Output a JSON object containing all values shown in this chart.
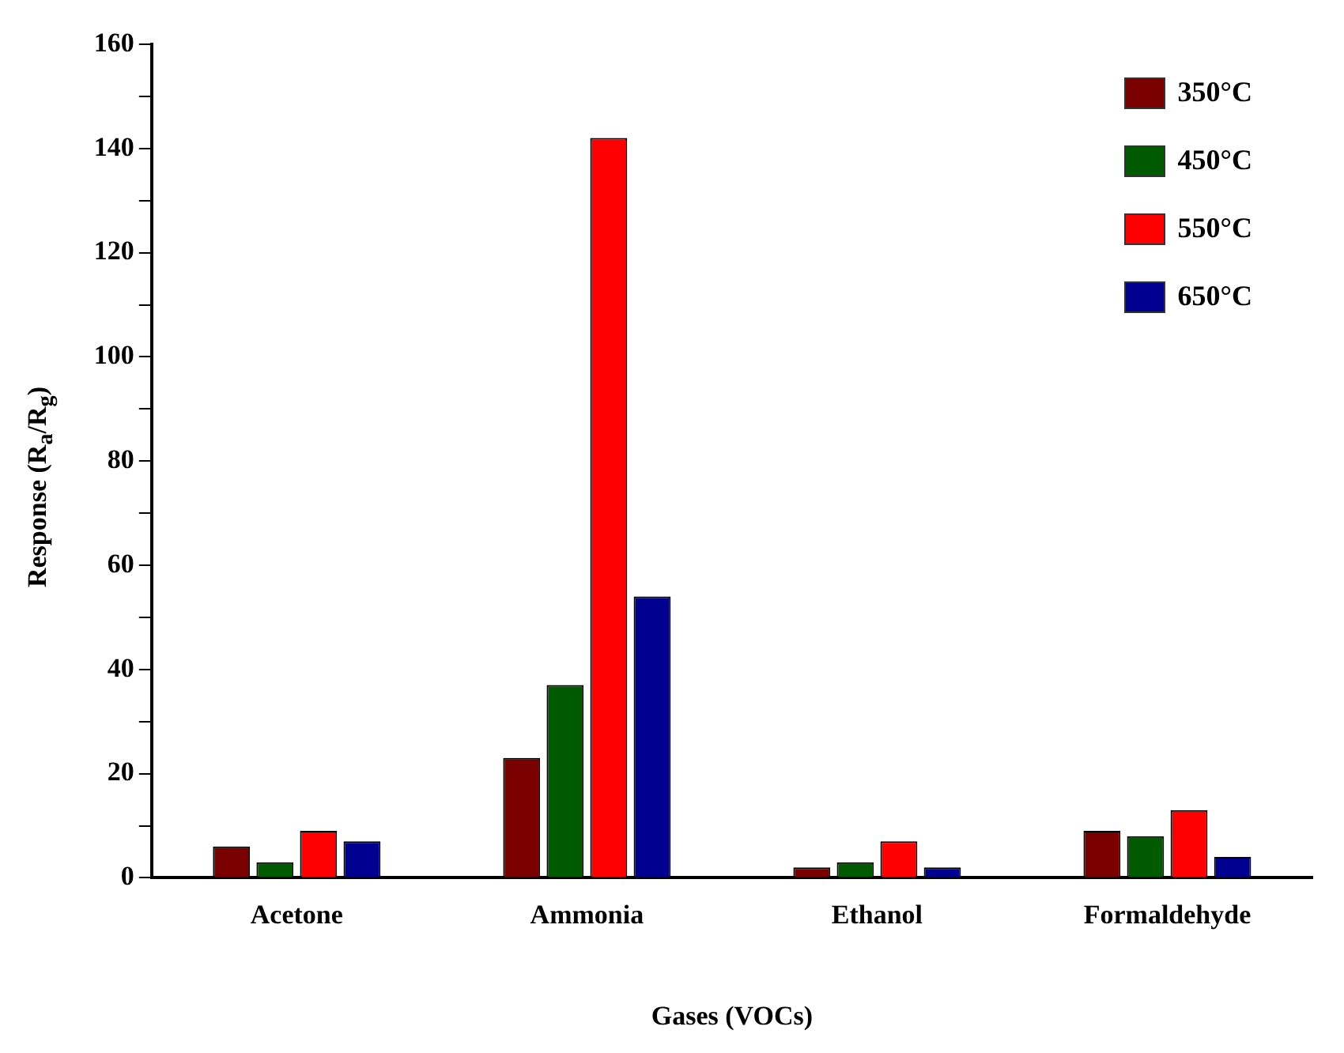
{
  "chart_data": {
    "type": "bar",
    "xlabel": "Gases (VOCs)",
    "ylabel": "Response (R$_{a}$/R$_{g}$)",
    "categories": [
      "Acetone",
      "Ammonia",
      "Ethanol",
      "Formaldehyde"
    ],
    "series": [
      {
        "name": "350°C",
        "color": "#7a0000",
        "values": [
          6,
          23,
          2,
          9
        ]
      },
      {
        "name": "450°C",
        "color": "#005a00",
        "values": [
          3,
          37,
          3,
          8
        ]
      },
      {
        "name": "550°C",
        "color": "#ff0000",
        "values": [
          9,
          142,
          7,
          13
        ]
      },
      {
        "name": "650°C",
        "color": "#000090",
        "values": [
          7,
          54,
          2,
          4
        ]
      }
    ],
    "ylim": [
      0,
      160
    ],
    "yticks": [
      0,
      {
        "value": 10,
        "label": null
      },
      20,
      {
        "value": 30,
        "label": null
      },
      40,
      {
        "value": 50,
        "label": null
      },
      60,
      {
        "value": 70,
        "label": null
      },
      80,
      {
        "value": 90,
        "label": null
      },
      100,
      {
        "value": 110,
        "label": null
      },
      120,
      {
        "value": 130,
        "label": null
      },
      140,
      {
        "value": 150,
        "label": null
      },
      160
    ],
    "grid": false,
    "legend": "top right"
  }
}
